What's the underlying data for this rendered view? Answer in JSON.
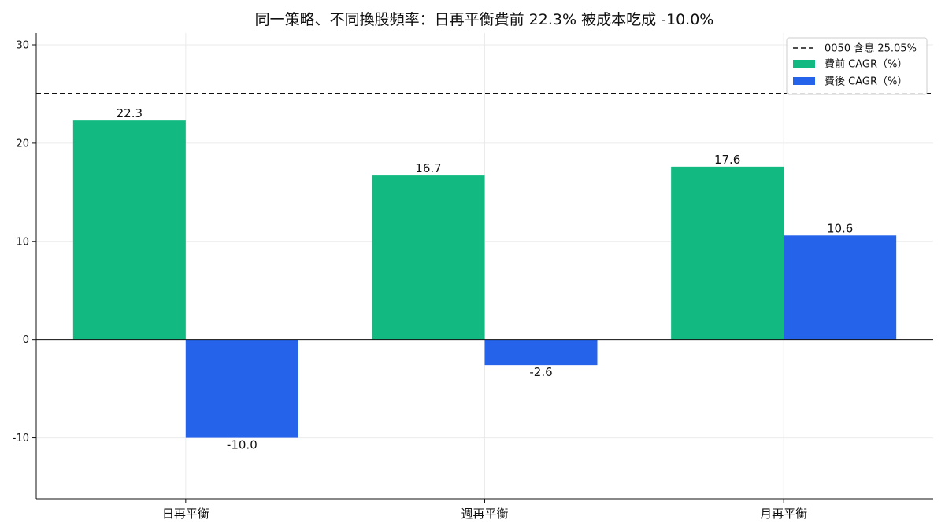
{
  "chart_data": {
    "type": "bar",
    "title": "同一策略、不同換股頻率：日再平衡費前 22.3% 被成本吃成 -10.0%",
    "xlabel": "",
    "ylabel": "",
    "categories": [
      "日再平衡",
      "週再平衡",
      "月再平衡"
    ],
    "series": [
      {
        "name": "費前 CAGR（%）",
        "values": [
          22.3,
          16.7,
          17.6
        ],
        "color": "#12b981"
      },
      {
        "name": "費後 CAGR（%）",
        "values": [
          -10.0,
          -2.6,
          10.6
        ],
        "color": "#2563eb"
      }
    ],
    "data_labels": {
      "pre": [
        "22.3",
        "16.7",
        "17.6"
      ],
      "post": [
        "-10.0",
        "-2.6",
        "10.6"
      ]
    },
    "reference_line": {
      "name": "0050 含息 25.05%",
      "value": 25.05,
      "style": "dashed",
      "color": "#111111"
    },
    "ylim": [
      -16.2,
      31.2
    ],
    "yticks": [
      -10,
      0,
      10,
      20,
      30
    ],
    "ytick_labels": [
      "-10",
      "0",
      "10",
      "20",
      "30"
    ],
    "grid": true,
    "legend_position": "top-right"
  }
}
